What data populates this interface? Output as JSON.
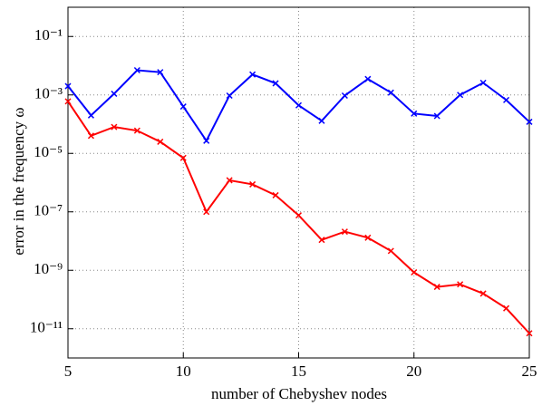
{
  "chart_data": {
    "type": "line",
    "xlabel": "number of Chebyshev nodes",
    "ylabel": "error in the frequency ω",
    "x": [
      5,
      6,
      7,
      8,
      9,
      10,
      11,
      12,
      13,
      14,
      15,
      16,
      17,
      18,
      19,
      20,
      21,
      22,
      23,
      24,
      25
    ],
    "series": [
      {
        "color": "#0000ff",
        "values": [
          0.002,
          0.0002,
          0.0011,
          0.007,
          0.006,
          0.0004,
          2.7e-05,
          0.00095,
          0.005,
          0.0025,
          0.00044,
          0.00013,
          0.00095,
          0.0035,
          0.0012,
          0.00023,
          0.00019,
          0.001,
          0.0026,
          0.00067,
          0.00012
        ]
      },
      {
        "color": "#ff0000",
        "values": [
          0.0006,
          4e-05,
          8e-05,
          6e-05,
          2.5e-05,
          7e-06,
          1e-07,
          1.2e-06,
          8.7e-07,
          3.7e-07,
          7.6e-08,
          1.1e-08,
          2.1e-08,
          1.3e-08,
          4.6e-09,
          8.5e-10,
          2.7e-10,
          3.3e-10,
          1.6e-10,
          5e-11,
          7e-12
        ]
      }
    ],
    "xlim": [
      5,
      25
    ],
    "xticks": [
      5,
      10,
      15,
      20,
      25
    ],
    "ylim": [
      1e-12,
      1
    ],
    "log_y": true,
    "yticks": [
      {
        "value": 1e-11,
        "label": "10⁻¹¹"
      },
      {
        "value": 1e-09,
        "label": "10⁻⁹"
      },
      {
        "value": 1e-07,
        "label": "10⁻⁷"
      },
      {
        "value": 1e-05,
        "label": "10⁻⁵"
      },
      {
        "value": 0.001,
        "label": "10⁻³"
      },
      {
        "value": 0.1,
        "label": "10⁻¹"
      }
    ],
    "grid": true
  }
}
